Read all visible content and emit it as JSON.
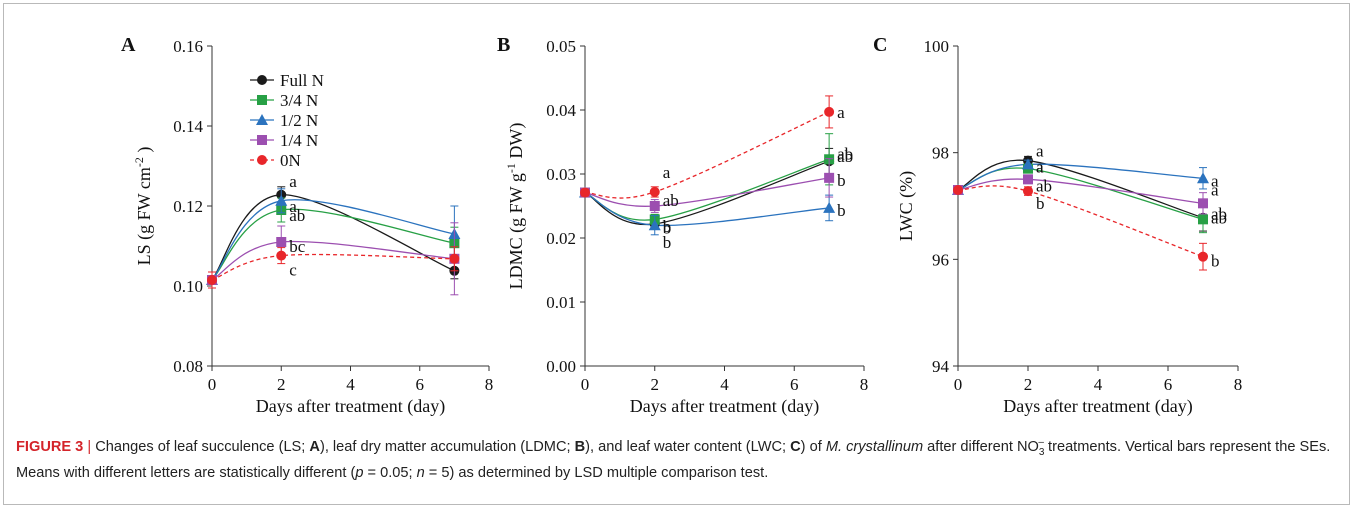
{
  "chart_data": [
    {
      "type": "line",
      "panel_label": "A",
      "ylabel": "LS (g FW cm⁻²)",
      "ylabel_parts": [
        "LS (g FW cm",
        "-2",
        " )"
      ],
      "xlabel": "Days after treatment (day)",
      "xlim": [
        0,
        8
      ],
      "ylim": [
        0.08,
        0.16
      ],
      "xticks": [
        "0",
        "2",
        "4",
        "6",
        "8"
      ],
      "yticks": [
        "0.08",
        "0.10",
        "0.12",
        "0.14",
        "0.16"
      ],
      "x": [
        0,
        2,
        7
      ],
      "legend": {
        "position": "top-left"
      },
      "series": [
        {
          "name": "Full N",
          "values": [
            0.1015,
            0.1228,
            0.1038
          ],
          "errors": [
            0.002,
            0.002,
            0.002
          ],
          "letters": [
            "",
            "a",
            ""
          ]
        },
        {
          "name": "3/4 N",
          "values": [
            0.1015,
            0.119,
            0.1107
          ],
          "errors": [
            0.002,
            0.003,
            0.004
          ],
          "letters": [
            "",
            "a",
            ""
          ]
        },
        {
          "name": "1/2 N",
          "values": [
            0.1015,
            0.1213,
            0.113
          ],
          "errors": [
            0.002,
            0.003,
            0.007
          ],
          "letters": [
            "",
            "ab",
            ""
          ]
        },
        {
          "name": "1/4 N",
          "values": [
            0.1015,
            0.111,
            0.1068
          ],
          "errors": [
            0.002,
            0.004,
            0.009
          ],
          "letters": [
            "",
            "bc",
            ""
          ]
        },
        {
          "name": "0N",
          "values": [
            0.1015,
            0.1076,
            0.1068
          ],
          "errors": [
            0.002,
            0.002,
            0.003
          ],
          "letters": [
            "",
            "c",
            ""
          ]
        }
      ]
    },
    {
      "type": "line",
      "panel_label": "B",
      "ylabel": "LDMC (g FW g⁻¹ DW)",
      "ylabel_parts": [
        "LDMC (g FW g",
        "-1",
        " DW)"
      ],
      "xlabel": "Days after treatment (day)",
      "xlim": [
        0,
        8
      ],
      "ylim": [
        0,
        0.05
      ],
      "xticks": [
        "0",
        "2",
        "4",
        "6",
        "8"
      ],
      "yticks": [
        "0.00",
        "0.01",
        "0.02",
        "0.03",
        "0.04",
        "0.05"
      ],
      "x": [
        0,
        2,
        7
      ],
      "series": [
        {
          "name": "Full N",
          "values": [
            0.0271,
            0.0222,
            0.032
          ],
          "errors": [
            0.0005,
            0.0008,
            0.002
          ],
          "letters": [
            "",
            "b",
            "ab"
          ]
        },
        {
          "name": "3/4 N",
          "values": [
            0.0271,
            0.0229,
            0.0323
          ],
          "errors": [
            0.0005,
            0.0008,
            0.004
          ],
          "letters": [
            "",
            "b",
            "ab"
          ]
        },
        {
          "name": "1/2 N",
          "values": [
            0.0271,
            0.022,
            0.0247
          ],
          "errors": [
            0.0005,
            0.0015,
            0.002
          ],
          "letters": [
            "",
            "b",
            "b"
          ]
        },
        {
          "name": "1/4 N",
          "values": [
            0.0271,
            0.025,
            0.0294
          ],
          "errors": [
            0.0005,
            0.001,
            0.003
          ],
          "letters": [
            "",
            "ab",
            "b"
          ]
        },
        {
          "name": "0N",
          "values": [
            0.0271,
            0.0272,
            0.0397
          ],
          "errors": [
            0.0005,
            0.0008,
            0.0025
          ],
          "letters": [
            "",
            "a",
            "a"
          ]
        }
      ]
    },
    {
      "type": "line",
      "panel_label": "C",
      "ylabel": "LWC (%)",
      "ylabel_parts": [
        "LWC (%)",
        "",
        ""
      ],
      "xlabel": "Days after treatment (day)",
      "xlim": [
        0,
        8
      ],
      "ylim": [
        94,
        100
      ],
      "xticks": [
        "0",
        "2",
        "4",
        "6",
        "8"
      ],
      "yticks": [
        "94",
        "96",
        "98",
        "100"
      ],
      "x": [
        0,
        2,
        7
      ],
      "series": [
        {
          "name": "Full N",
          "values": [
            97.3,
            97.85,
            96.78
          ],
          "errors": [
            0.05,
            0.08,
            0.25
          ],
          "letters": [
            "",
            "a",
            "ab"
          ]
        },
        {
          "name": "3/4 N",
          "values": [
            97.3,
            97.7,
            96.75
          ],
          "errors": [
            0.05,
            0.08,
            0.25
          ],
          "letters": [
            "",
            "a",
            "ab"
          ]
        },
        {
          "name": "1/2 N",
          "values": [
            97.3,
            97.78,
            97.52
          ],
          "errors": [
            0.05,
            0.08,
            0.2
          ],
          "letters": [
            "",
            "a",
            "a"
          ]
        },
        {
          "name": "1/4 N",
          "values": [
            97.3,
            97.5,
            97.05
          ],
          "errors": [
            0.05,
            0.08,
            0.2
          ],
          "letters": [
            "",
            "ab",
            "a"
          ]
        },
        {
          "name": "0N",
          "values": [
            97.3,
            97.28,
            96.05
          ],
          "errors": [
            0.05,
            0.08,
            0.25
          ],
          "letters": [
            "",
            "b",
            "b"
          ]
        }
      ]
    }
  ],
  "series_colors": [
    "#1a1a1a",
    "#27a045",
    "#2b73be",
    "#9c4fb0",
    "#e8262a"
  ],
  "series_markers": [
    "circle",
    "square",
    "triangle",
    "square",
    "circle"
  ],
  "series_dashed": [
    false,
    false,
    false,
    false,
    true
  ],
  "caption": {
    "figure_label": "FIGURE 3",
    "separator": "|",
    "t1": "Changes of leaf succulence (LS; ",
    "pA": "A",
    "t2": "), leaf dry matter accumulation (LDMC; ",
    "pB": "B",
    "t3": "), and leaf water content (LWC; ",
    "pC": "C",
    "t4": ") of ",
    "species": "M. crystallinum",
    "t5": " after different NO",
    "sub3": "3",
    "supminus": "–",
    "t6": " treatments. Vertical bars represent the SEs. Means with different letters are statistically different (",
    "p": "p",
    "t7": " = 0.05; ",
    "n": "n",
    "t8": " = 5) as determined by LSD multiple comparison test."
  }
}
